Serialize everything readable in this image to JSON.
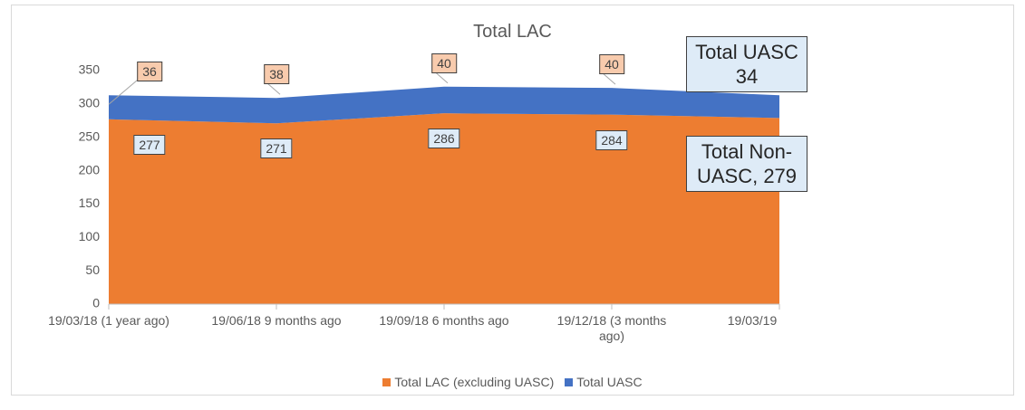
{
  "chart_data": {
    "type": "stacked_area",
    "title": "Total LAC",
    "categories": [
      "19/03/18 (1 year ago)",
      "19/06/18 9 months ago",
      "19/09/18 6 months ago",
      "19/12/18 (3 months ago)",
      "19/03/19"
    ],
    "series": [
      {
        "name": "Total LAC (excluding UASC)",
        "color": "#ed7d31",
        "values": [
          277,
          271,
          286,
          284,
          279
        ],
        "value_labels": [
          "277",
          "271",
          "286",
          "284",
          "Total Non-UASC, 279"
        ]
      },
      {
        "name": "Total UASC",
        "color": "#4472c4",
        "values": [
          36,
          38,
          40,
          40,
          34
        ],
        "value_labels": [
          "36",
          "38",
          "40",
          "40",
          "Total UASC 34"
        ]
      }
    ],
    "ylim": [
      0,
      350
    ],
    "yticks": [
      0,
      50,
      100,
      150,
      200,
      250,
      300,
      350
    ],
    "grid": false,
    "legend": "bottom"
  }
}
